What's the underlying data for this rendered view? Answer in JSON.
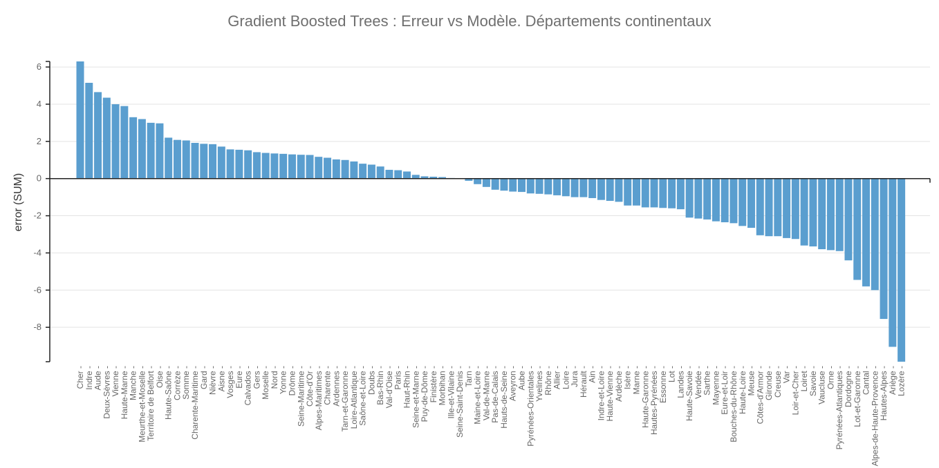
{
  "chart_data": {
    "type": "bar",
    "title": "Gradient Boosted Trees : Erreur vs Modèle. Départements continentaux",
    "xlabel": "",
    "ylabel": "error (SUM)",
    "ylim": [
      -9.85,
      6.3
    ],
    "yticks": [
      6,
      4,
      2,
      0,
      -2,
      -4,
      -6,
      -8
    ],
    "grid": true,
    "legend": "none",
    "bar_color": "#5a9ecf",
    "categories": [
      "Cher",
      "Indre",
      "Aude",
      "Deux-Sèvres",
      "Vienne",
      "Haute-Marne",
      "Manche",
      "Meurthe-et-Moselle",
      "Territoire de Belfort",
      "Oise",
      "Haute-Saône",
      "Corrèze",
      "Somme",
      "Charente-Maritime",
      "Gard",
      "Nièvre",
      "Aisne",
      "Vosges",
      "Eure",
      "Calvados",
      "Gers",
      "Moselle",
      "Nord",
      "Yonne",
      "Drôme",
      "Seine-Maritime",
      "Côte-d'Or",
      "Alpes-Maritimes",
      "Charente",
      "Ardennes",
      "Tarn-et-Garonne",
      "Loire-Atlantique",
      "Saône-et-Loire",
      "Doubs",
      "Bas-Rhin",
      "Val-d'Oise",
      "Paris",
      "Haut-Rhin",
      "Seine-et-Marne",
      "Puy-de-Dôme",
      "Finistère",
      "Morbihan",
      "Ille-et-Vilaine",
      "Seine-Saint-Denis",
      "Tarn",
      "Maine-et-Loire",
      "Val-de-Marne",
      "Pas-de-Calais",
      "Hauts-de-Seine",
      "Aveyron",
      "Aube",
      "Pyrénées-Orientales",
      "Yvelines",
      "Rhône",
      "Allier",
      "Loire",
      "Jura",
      "Hérault",
      "Ain",
      "Indre-et-Loire",
      "Haute-Vienne",
      "Ardèche",
      "Isère",
      "Marne",
      "Haute-Garonne",
      "Hautes-Pyrénées",
      "Essonne",
      "Lot",
      "Landes",
      "Haute-Savoie",
      "Vendée",
      "Sarthe",
      "Mayenne",
      "Eure-et-Loir",
      "Bouches-du-Rhône",
      "Haute-Loire",
      "Meuse",
      "Côtes-d'Armor",
      "Gironde",
      "Creuse",
      "Var",
      "Loir-et-Cher",
      "Loiret",
      "Savoie",
      "Vaucluse",
      "Orne",
      "Pyrénées-Atlantiques",
      "Dordogne",
      "Lot-et-Garonne",
      "Cantal",
      "Alpes-de-Haute-Provence",
      "Hautes-Alpes",
      "Ariège",
      "Lozère"
    ],
    "values": [
      6.3,
      5.15,
      4.65,
      4.35,
      4.0,
      3.9,
      3.3,
      3.2,
      3.0,
      2.97,
      2.2,
      2.08,
      2.05,
      1.92,
      1.87,
      1.85,
      1.72,
      1.57,
      1.55,
      1.52,
      1.42,
      1.38,
      1.35,
      1.33,
      1.3,
      1.28,
      1.27,
      1.17,
      1.12,
      1.03,
      1.0,
      0.92,
      0.8,
      0.75,
      0.65,
      0.47,
      0.45,
      0.38,
      0.2,
      0.12,
      0.1,
      0.08,
      0.03,
      0.02,
      -0.12,
      -0.3,
      -0.45,
      -0.6,
      -0.65,
      -0.7,
      -0.72,
      -0.8,
      -0.82,
      -0.85,
      -0.9,
      -0.95,
      -1.0,
      -1.0,
      -1.05,
      -1.15,
      -1.2,
      -1.25,
      -1.45,
      -1.45,
      -1.55,
      -1.55,
      -1.58,
      -1.6,
      -1.65,
      -2.1,
      -2.15,
      -2.2,
      -2.3,
      -2.35,
      -2.4,
      -2.55,
      -2.65,
      -3.05,
      -3.1,
      -3.1,
      -3.2,
      -3.25,
      -3.6,
      -3.65,
      -3.8,
      -3.85,
      -3.9,
      -4.4,
      -5.45,
      -5.8,
      -6.0,
      -7.55,
      -9.05,
      -9.85
    ]
  }
}
